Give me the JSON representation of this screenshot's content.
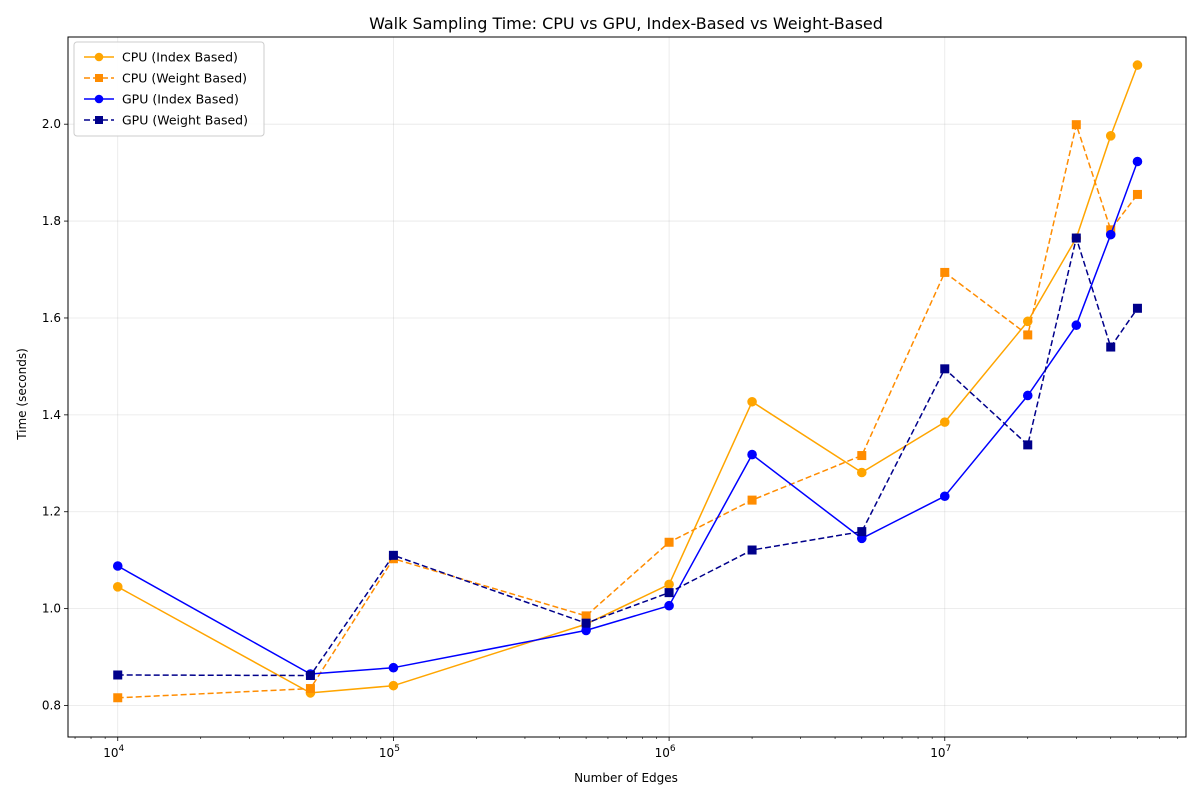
{
  "chart_data": {
    "type": "line",
    "title": "Walk Sampling Time: CPU vs GPU, Index-Based vs Weight-Based",
    "xlabel": "Number of Edges",
    "ylabel": "Time (seconds)",
    "xscale": "log",
    "xlim": [
      6600,
      75000000
    ],
    "ylim": [
      0.735,
      2.18
    ],
    "xticks": [
      {
        "value": 10000,
        "base": "10",
        "exp": "4"
      },
      {
        "value": 100000,
        "base": "10",
        "exp": "5"
      },
      {
        "value": 1000000,
        "base": "10",
        "exp": "6"
      },
      {
        "value": 10000000,
        "base": "10",
        "exp": "7"
      }
    ],
    "yticks": [
      "0.8",
      "1.0",
      "1.2",
      "1.4",
      "1.6",
      "1.8",
      "2.0"
    ],
    "grid": true,
    "legend_position": "top-left",
    "x": [
      10000,
      50000,
      100000,
      500000,
      1000000,
      2000000,
      5000000,
      10000000,
      20000000,
      30000000,
      40000000,
      50000000
    ],
    "series": [
      {
        "name": "CPU (Index Based)",
        "color": "#FFA500",
        "linestyle": "solid",
        "marker": "circle",
        "values": [
          1.045,
          0.826,
          0.841,
          0.968,
          1.05,
          1.427,
          1.281,
          1.385,
          1.593,
          1.765,
          1.976,
          2.122
        ]
      },
      {
        "name": "CPU (Weight Based)",
        "color": "#FF8C00",
        "linestyle": "dashed",
        "marker": "square",
        "values": [
          0.816,
          0.835,
          1.103,
          0.985,
          1.137,
          1.224,
          1.316,
          1.694,
          1.565,
          1.999,
          1.782,
          1.855
        ]
      },
      {
        "name": "GPU (Index Based)",
        "color": "#0000FF",
        "linestyle": "solid",
        "marker": "circle",
        "values": [
          1.088,
          0.865,
          0.878,
          0.955,
          1.006,
          1.318,
          1.145,
          1.232,
          1.44,
          1.585,
          1.772,
          1.923
        ]
      },
      {
        "name": "GPU (Weight Based)",
        "color": "#00008B",
        "linestyle": "dashed",
        "marker": "square",
        "values": [
          0.863,
          0.862,
          1.11,
          0.97,
          1.033,
          1.121,
          1.159,
          1.495,
          1.338,
          1.765,
          1.54,
          1.62
        ]
      }
    ]
  }
}
